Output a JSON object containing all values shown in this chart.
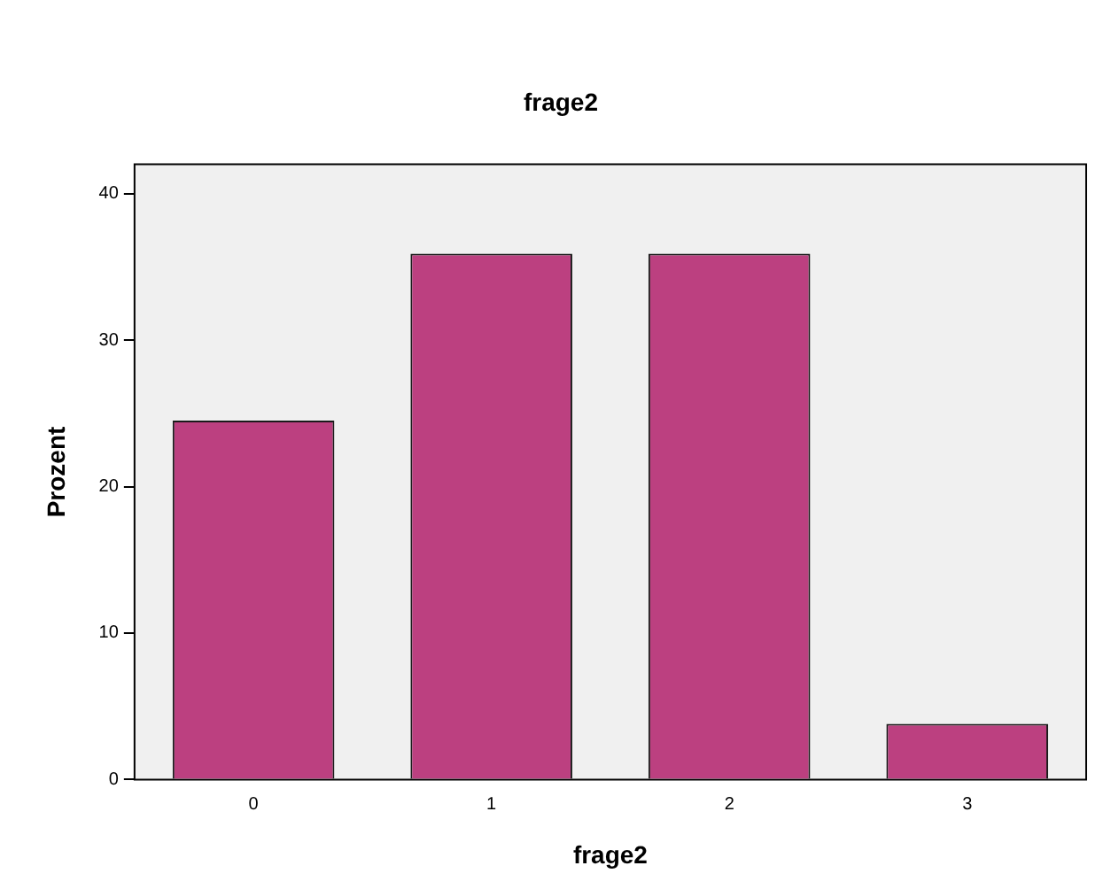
{
  "chart_data": {
    "type": "bar",
    "title": "frage2",
    "xlabel": "frage2",
    "ylabel": "Prozent",
    "categories": [
      "0",
      "1",
      "2",
      "3"
    ],
    "values": [
      24.5,
      35.9,
      35.9,
      3.8
    ],
    "color": "#bc4080",
    "ylim": [
      0,
      42
    ],
    "yticks": [
      0,
      10,
      20,
      30,
      40
    ],
    "grid": false,
    "legend": false
  }
}
